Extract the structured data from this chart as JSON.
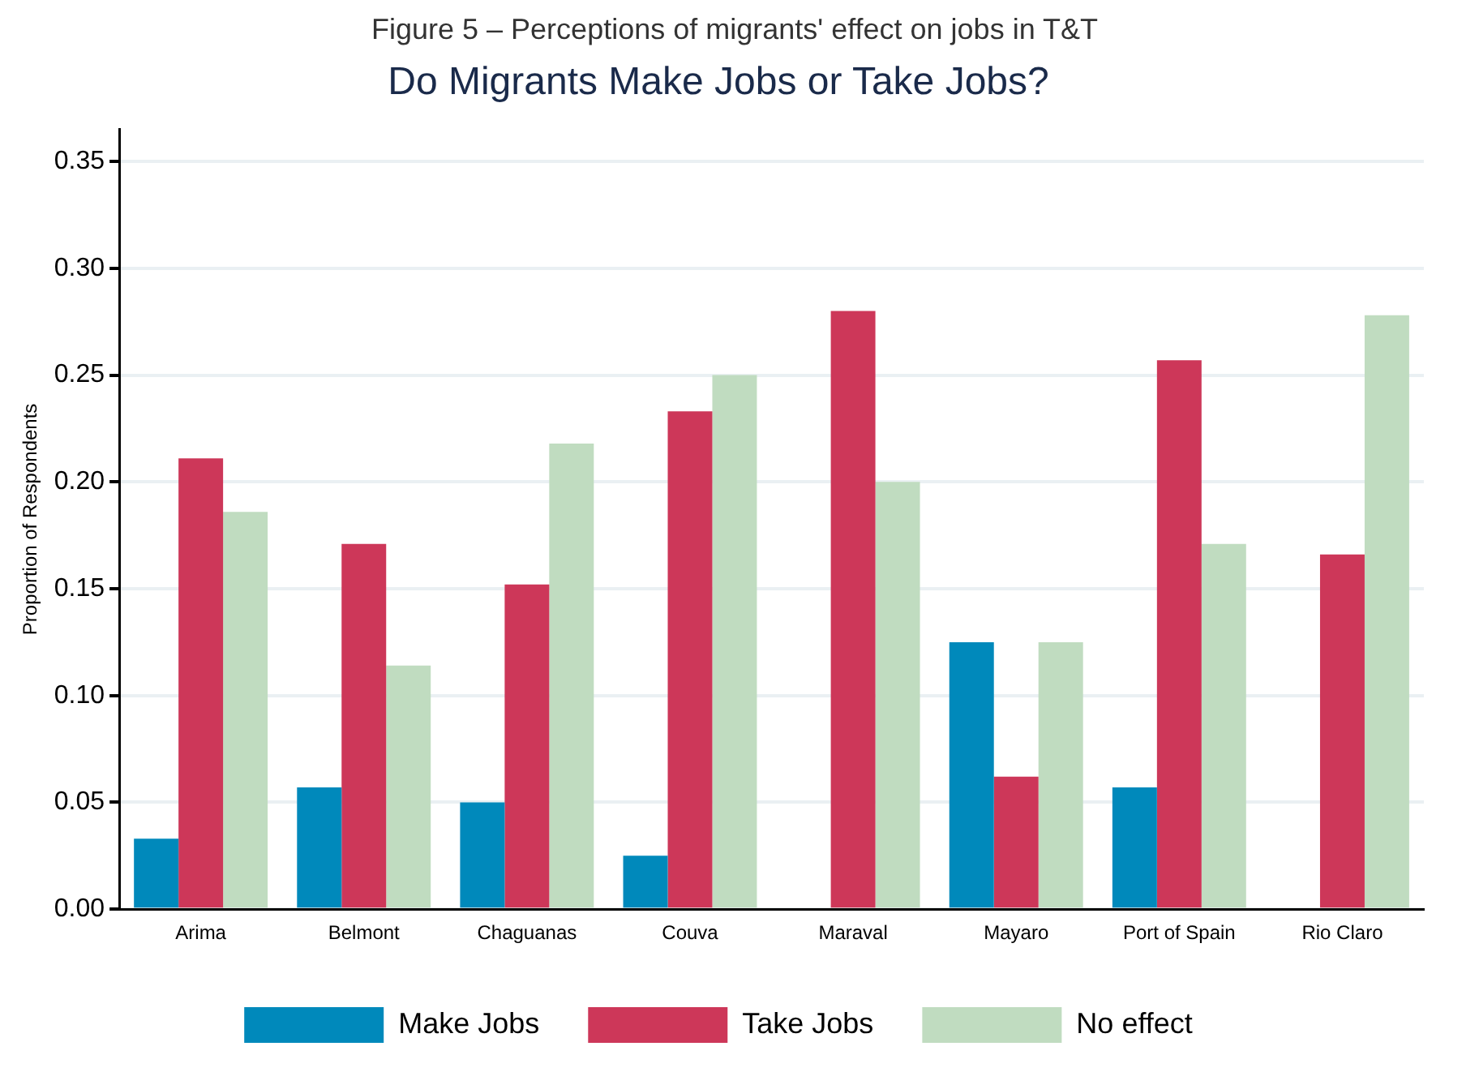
{
  "chart_data": {
    "type": "bar",
    "title": "Do Migrants Make Jobs or Take Jobs?",
    "ylabel": "Proportion of Respondents",
    "annotations": [
      "Figure 5 – Perceptions of migrants' effect on jobs in T&T"
    ],
    "categories": [
      "Arima",
      "Belmont",
      "Chaguanas",
      "Couva",
      "Maraval",
      "Mayaro",
      "Port of Spain",
      "Rio Claro"
    ],
    "series": [
      {
        "name": "Make Jobs",
        "color": "#0089bb",
        "values": [
          0.033,
          0.057,
          0.05,
          0.025,
          0,
          0.125,
          0.057,
          0
        ]
      },
      {
        "name": "Take Jobs",
        "color": "#cd3759",
        "values": [
          0.211,
          0.171,
          0.152,
          0.233,
          0.28,
          0.062,
          0.257,
          0.166
        ]
      },
      {
        "name": "No effect",
        "color": "#c0dcc0",
        "values": [
          0.186,
          0.114,
          0.218,
          0.25,
          0.2,
          0.125,
          0.171,
          0.278
        ]
      }
    ],
    "ylim": [
      0,
      0.365
    ],
    "yticks": [
      {
        "value": 0,
        "label": "0.00"
      },
      {
        "value": 0.05,
        "label": "0.05"
      },
      {
        "value": 0.1,
        "label": "0.10"
      },
      {
        "value": 0.15,
        "label": "0.15"
      },
      {
        "value": 0.2,
        "label": "0.20"
      },
      {
        "value": 0.25,
        "label": "0.25"
      },
      {
        "value": 0.3,
        "label": "0.30"
      },
      {
        "value": 0.35,
        "label": "0.35"
      }
    ],
    "grid": "y",
    "legend": "bottom"
  }
}
